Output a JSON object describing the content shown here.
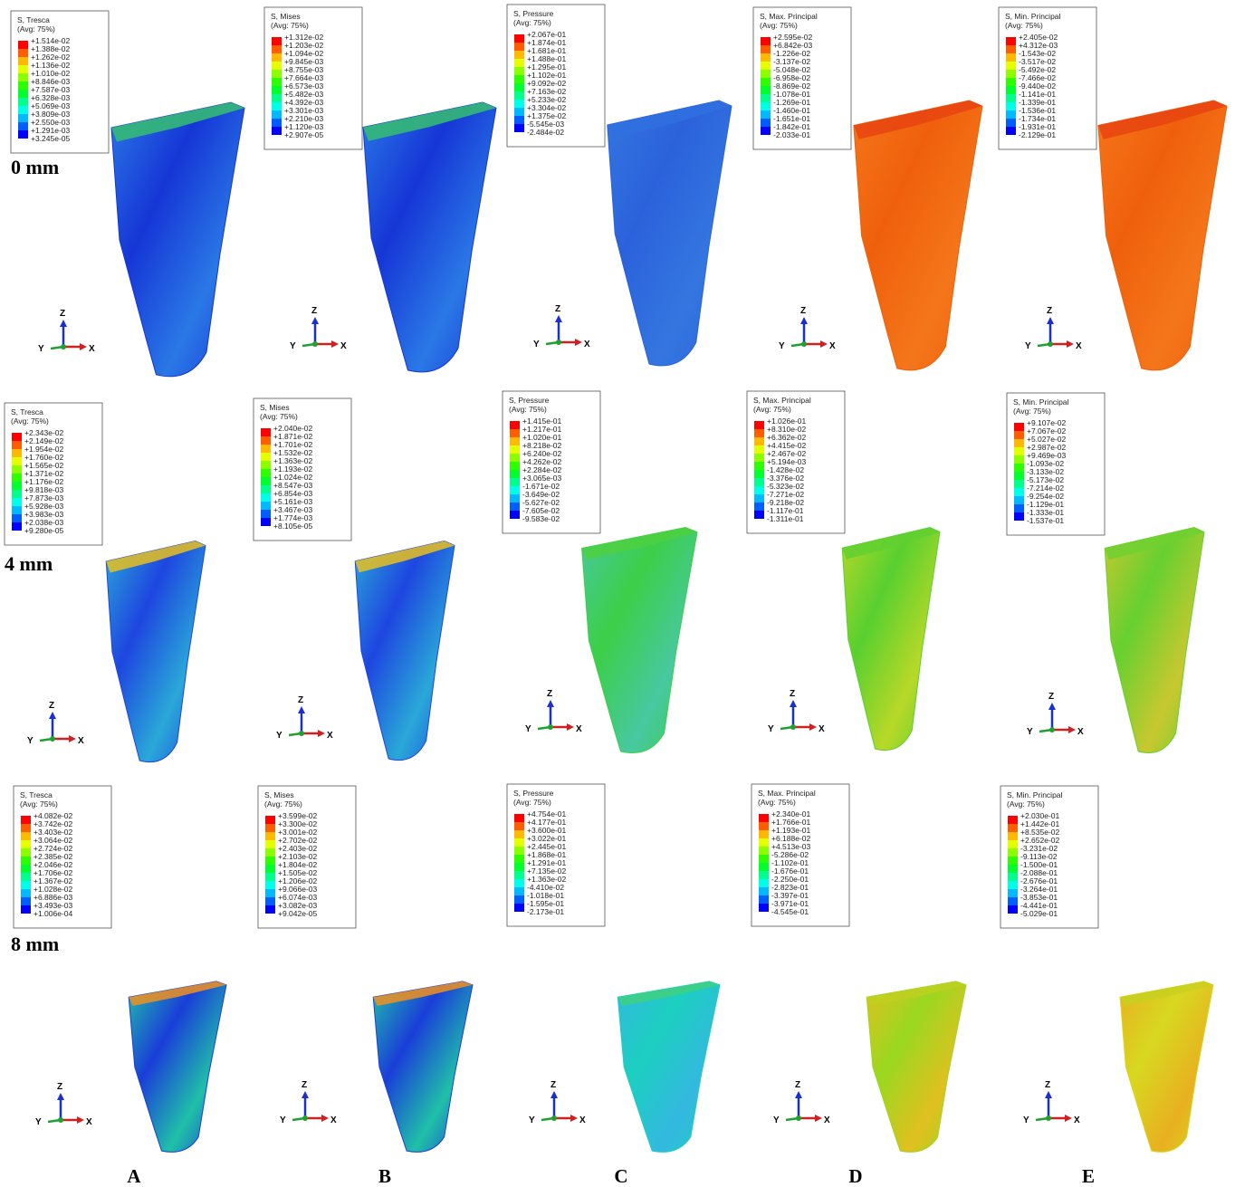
{
  "row_labels": [
    "0 mm",
    "4 mm",
    "8 mm"
  ],
  "column_labels": [
    "A",
    "B",
    "C",
    "D",
    "E"
  ],
  "triad": {
    "z": "Z",
    "y": "Y",
    "x": "X"
  },
  "panels": [
    [
      {
        "title": "S, Tresca",
        "note": "(Avg: 75%)",
        "values": [
          "+1.514e-02",
          "+1.388e-02",
          "+1.262e-02",
          "+1.136e-02",
          "+1.010e-02",
          "+8.846e-03",
          "+7.587e-03",
          "+6.328e-03",
          "+5.069e-03",
          "+3.809e-03",
          "+2.550e-03",
          "+1.291e-03",
          "+3.245e-05"
        ]
      },
      {
        "title": "S, Mises",
        "note": "(Avg: 75%)",
        "values": [
          "+1.312e-02",
          "+1.203e-02",
          "+1.094e-02",
          "+9.845e-03",
          "+8.755e-03",
          "+7.664e-03",
          "+6.573e-03",
          "+5.482e-03",
          "+4.392e-03",
          "+3.301e-03",
          "+2.210e-03",
          "+1.120e-03",
          "+2.907e-05"
        ]
      },
      {
        "title": "S, Pressure",
        "note": "(Avg: 75%)",
        "values": [
          "+2.067e-01",
          "+1.874e-01",
          "+1.681e-01",
          "+1.488e-01",
          "+1.295e-01",
          "+1.102e-01",
          "+9.092e-02",
          "+7.163e-02",
          "+5.233e-02",
          "+3.304e-02",
          "+1.375e-02",
          "-5.545e-03",
          "-2.484e-02"
        ]
      },
      {
        "title": "S, Max. Principal",
        "note": "(Avg: 75%)",
        "values": [
          "+2.595e-02",
          "+6.842e-03",
          "-1.226e-02",
          "-3.137e-02",
          "-5.048e-02",
          "-6.958e-02",
          "-8.869e-02",
          "-1.078e-01",
          "-1.269e-01",
          "-1.460e-01",
          "-1.651e-01",
          "-1.842e-01",
          "-2.033e-01"
        ]
      },
      {
        "title": "S, Min. Principal",
        "note": "(Avg: 75%)",
        "values": [
          "+2.405e-02",
          "+4.312e-03",
          "-1.543e-02",
          "-3.517e-02",
          "-5.492e-02",
          "-7.466e-02",
          "-9.440e-02",
          "-1.141e-01",
          "-1.339e-01",
          "-1.536e-01",
          "-1.734e-01",
          "-1.931e-01",
          "-2.129e-01"
        ]
      }
    ],
    [
      {
        "title": "S, Tresca",
        "note": "(Avg: 75%)",
        "values": [
          "+2.343e-02",
          "+2.149e-02",
          "+1.954e-02",
          "+1.760e-02",
          "+1.565e-02",
          "+1.371e-02",
          "+1.176e-02",
          "+9.818e-03",
          "+7.873e-03",
          "+5.928e-03",
          "+3.983e-03",
          "+2.038e-03",
          "+9.280e-05"
        ]
      },
      {
        "title": "S, Mises",
        "note": "(Avg: 75%)",
        "values": [
          "+2.040e-02",
          "+1.871e-02",
          "+1.701e-02",
          "+1.532e-02",
          "+1.363e-02",
          "+1.193e-02",
          "+1.024e-02",
          "+8.547e-03",
          "+6.854e-03",
          "+5.161e-03",
          "+3.467e-03",
          "+1.774e-03",
          "+8.105e-05"
        ]
      },
      {
        "title": "S, Pressure",
        "note": "(Avg: 75%)",
        "values": [
          "+1.415e-01",
          "+1.217e-01",
          "+1.020e-01",
          "+8.218e-02",
          "+6.240e-02",
          "+4.262e-02",
          "+2.284e-02",
          "+3.065e-03",
          "-1.671e-02",
          "-3.649e-02",
          "-5.627e-02",
          "-7.605e-02",
          "-9.583e-02"
        ]
      },
      {
        "title": "S, Max. Principal",
        "note": "(Avg: 75%)",
        "values": [
          "+1.026e-01",
          "+8.310e-02",
          "+6.362e-02",
          "+4.415e-02",
          "+2.467e-02",
          "+5.194e-03",
          "-1.428e-02",
          "-3.376e-02",
          "-5.323e-02",
          "-7.271e-02",
          "-9.218e-02",
          "-1.117e-01",
          "-1.311e-01"
        ]
      },
      {
        "title": "S, Min. Principal",
        "note": "(Avg: 75%)",
        "values": [
          "+9.107e-02",
          "+7.067e-02",
          "+5.027e-02",
          "+2.987e-02",
          "+9.469e-03",
          "-1.093e-02",
          "-3.133e-02",
          "-5.173e-02",
          "-7.214e-02",
          "-9.254e-02",
          "-1.129e-01",
          "-1.333e-01",
          "-1.537e-01"
        ]
      }
    ],
    [
      {
        "title": "S, Tresca",
        "note": "(Avg: 75%)",
        "values": [
          "+4.082e-02",
          "+3.742e-02",
          "+3.403e-02",
          "+3.064e-02",
          "+2.724e-02",
          "+2.385e-02",
          "+2.046e-02",
          "+1.706e-02",
          "+1.367e-02",
          "+1.028e-02",
          "+6.886e-03",
          "+3.493e-03",
          "+1.006e-04"
        ]
      },
      {
        "title": "S, Mises",
        "note": "(Avg: 75%)",
        "values": [
          "+3.599e-02",
          "+3.300e-02",
          "+3.001e-02",
          "+2.702e-02",
          "+2.403e-02",
          "+2.103e-02",
          "+1.804e-02",
          "+1.505e-02",
          "+1.206e-02",
          "+9.066e-03",
          "+6.074e-03",
          "+3.082e-03",
          "+9.042e-05"
        ]
      },
      {
        "title": "S, Pressure",
        "note": "(Avg: 75%)",
        "values": [
          "+4.754e-01",
          "+4.177e-01",
          "+3.600e-01",
          "+3.022e-01",
          "+2.445e-01",
          "+1.868e-01",
          "+1.291e-01",
          "+7.135e-02",
          "+1.363e-02",
          "-4.410e-02",
          "-1.018e-01",
          "-1.595e-01",
          "-2.173e-01"
        ]
      },
      {
        "title": "S, Max. Principal",
        "note": "(Avg: 75%)",
        "values": [
          "+2.340e-01",
          "+1.766e-01",
          "+1.193e-01",
          "+6.188e-02",
          "+4.513e-03",
          "-5.286e-02",
          "-1.102e-01",
          "-1.676e-01",
          "-2.250e-01",
          "-2.823e-01",
          "-3.397e-01",
          "-3.971e-01",
          "-4.545e-01"
        ]
      },
      {
        "title": "S, Min. Principal",
        "note": "(Avg: 75%)",
        "values": [
          "+2.030e-01",
          "+1.442e-01",
          "+8.535e-02",
          "+2.652e-02",
          "-3.231e-02",
          "-9.113e-02",
          "-1.500e-01",
          "-2.088e-01",
          "-2.676e-01",
          "-3.264e-01",
          "-3.853e-01",
          "-4.441e-01",
          "-5.029e-01"
        ]
      }
    ]
  ]
}
